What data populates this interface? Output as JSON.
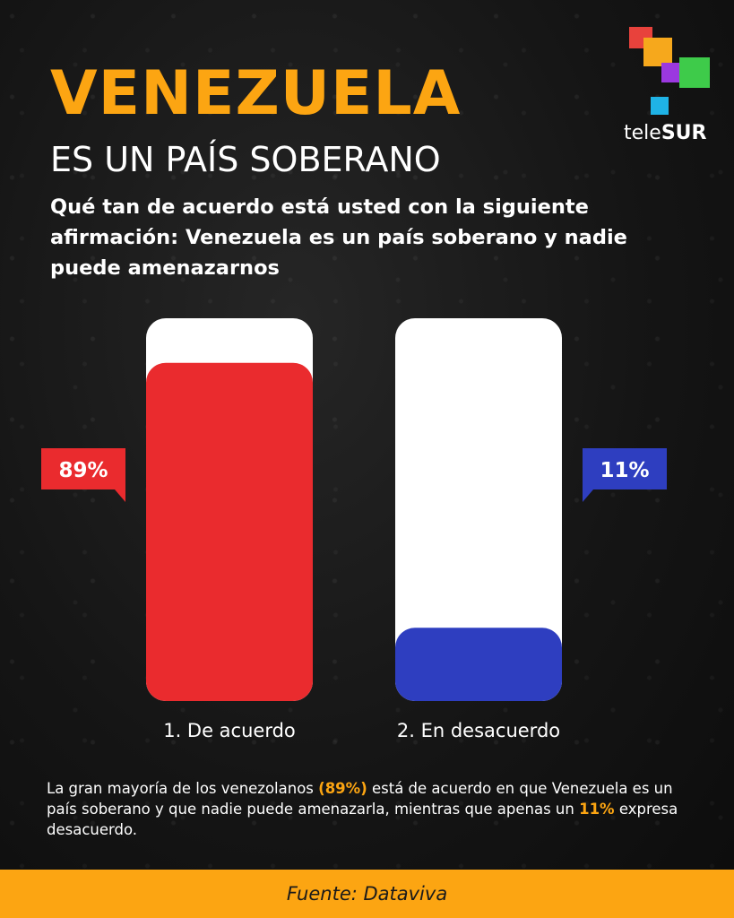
{
  "header": {
    "title": "VENEZUELA",
    "subtitle": "ES UN PAÍS SOBERANO",
    "question": "Qué tan de acuerdo está usted con la siguiente afirmación: Venezuela es un país soberano y nadie puede amenazarnos"
  },
  "logo": {
    "text_prefix": "tele",
    "text_bold": "SUR",
    "icon": "telesur-squares-logo"
  },
  "chart_data": {
    "type": "bar",
    "categories": [
      "1. De acuerdo",
      "2. En desacuerdo"
    ],
    "values": [
      89,
      11
    ],
    "value_labels": [
      "89%",
      "11%"
    ],
    "ylim": [
      0,
      100
    ],
    "colors": [
      "#ea2b2e",
      "#2e3ec0"
    ],
    "track_color": "#ffffff",
    "grid": false,
    "legend": "none"
  },
  "summary": {
    "part1": "La gran mayoría de los venezolanos ",
    "highlight1": "(89%)",
    "part2": " está de acuerdo en que Venezuela es un país soberano y que nadie puede amenazarla, mientras que apenas un ",
    "highlight2": "11%",
    "part3": " expresa desacuerdo."
  },
  "footer": {
    "source": "Fuente: Dataviva"
  },
  "colors": {
    "accent": "#fca512",
    "background": "#141414"
  }
}
